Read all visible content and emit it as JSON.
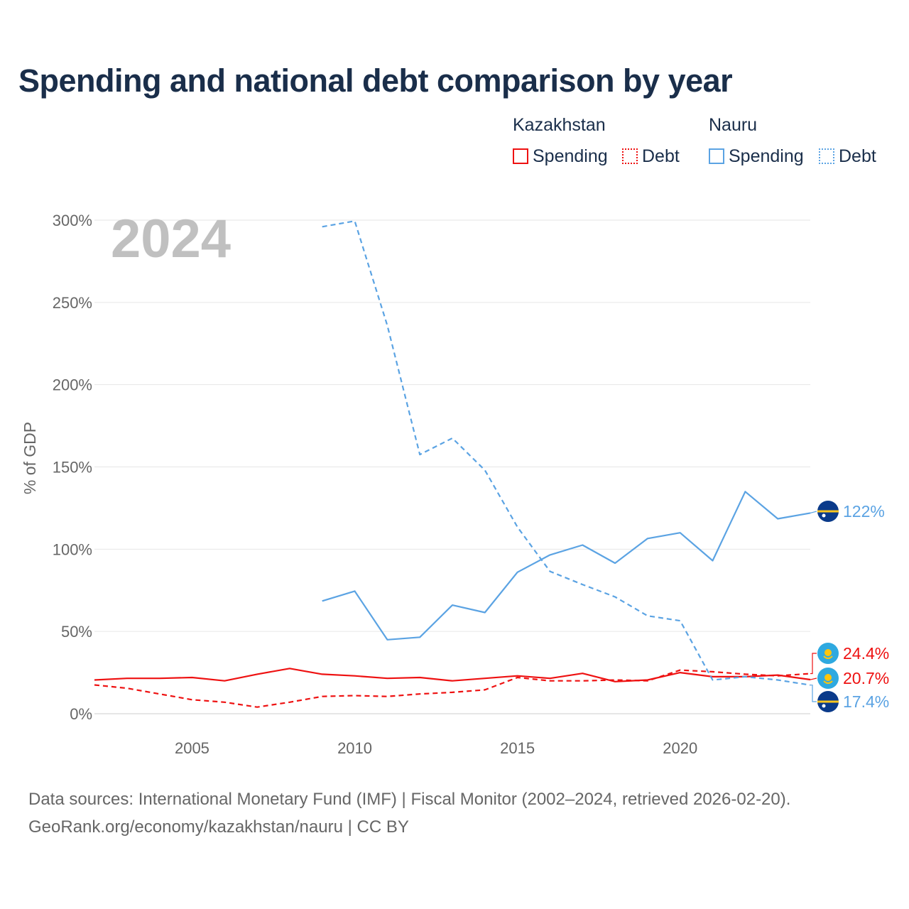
{
  "title": "Spending and national debt comparison by year",
  "legend": {
    "groups": [
      {
        "country": "Kazakhstan",
        "color": "#ee1111",
        "items": [
          {
            "label": "Spending",
            "style": "solid"
          },
          {
            "label": "Debt",
            "style": "dotted"
          }
        ]
      },
      {
        "country": "Nauru",
        "color": "#5ba3e3",
        "items": [
          {
            "label": "Spending",
            "style": "solid"
          },
          {
            "label": "Debt",
            "style": "dotted"
          }
        ]
      }
    ]
  },
  "source": {
    "line1": "Data sources: International Monetary Fund (IMF) | Fiscal Monitor (2002–2024, retrieved 2026-02-20).",
    "line2": "GeoRank.org/economy/kazakhstan/nauru | CC BY"
  },
  "chart_data": {
    "type": "line",
    "title": "Spending and national debt comparison by year",
    "watermark_year": "2024",
    "xlabel": "",
    "ylabel": "% of GDP",
    "xlim": [
      2002,
      2024
    ],
    "ylim": [
      0,
      300
    ],
    "x_ticks": [
      2005,
      2010,
      2015,
      2020
    ],
    "y_ticks": [
      0,
      50,
      100,
      150,
      200,
      250,
      300
    ],
    "y_tick_labels": [
      "0%",
      "50%",
      "100%",
      "150%",
      "200%",
      "250%",
      "300%"
    ],
    "grid": true,
    "colors": {
      "kazakhstan": "#ee1111",
      "nauru": "#5ba3e3"
    },
    "series": [
      {
        "name": "Kazakhstan Spending",
        "country": "kazakhstan",
        "style": "solid",
        "x": [
          2002,
          2003,
          2004,
          2005,
          2006,
          2007,
          2008,
          2009,
          2010,
          2011,
          2012,
          2013,
          2014,
          2015,
          2016,
          2017,
          2018,
          2019,
          2020,
          2021,
          2022,
          2023,
          2024
        ],
        "values": [
          20.5,
          21.5,
          21.5,
          22,
          20,
          24,
          27.5,
          24,
          23,
          21.5,
          22,
          20,
          21.5,
          23,
          21.5,
          24.5,
          19.5,
          20.5,
          25,
          22.5,
          22.5,
          23.5,
          20.7
        ]
      },
      {
        "name": "Kazakhstan Debt",
        "country": "kazakhstan",
        "style": "dashed",
        "x": [
          2002,
          2003,
          2004,
          2005,
          2006,
          2007,
          2008,
          2009,
          2010,
          2011,
          2012,
          2013,
          2014,
          2015,
          2016,
          2017,
          2018,
          2019,
          2020,
          2021,
          2022,
          2023,
          2024
        ],
        "values": [
          17.5,
          15.5,
          12,
          8.5,
          7,
          4,
          7,
          10.5,
          11,
          10.5,
          12,
          13,
          14.5,
          22,
          20,
          20,
          20.5,
          20,
          26.5,
          25.5,
          24,
          23,
          24.4
        ]
      },
      {
        "name": "Nauru Spending",
        "country": "nauru",
        "style": "solid",
        "x": [
          2009,
          2010,
          2011,
          2012,
          2013,
          2014,
          2015,
          2016,
          2017,
          2018,
          2019,
          2020,
          2021,
          2022,
          2023,
          2024
        ],
        "values": [
          68.5,
          74.5,
          45,
          46.5,
          66,
          61.5,
          86,
          96.5,
          102.5,
          91.5,
          106.5,
          110,
          93,
          135,
          118.5,
          122
        ]
      },
      {
        "name": "Nauru Debt",
        "country": "nauru",
        "style": "dashed",
        "x": [
          2009,
          2010,
          2011,
          2012,
          2013,
          2014,
          2015,
          2016,
          2017,
          2018,
          2019,
          2020,
          2021,
          2022,
          2023,
          2024
        ],
        "values": [
          296,
          299.5,
          236,
          157.5,
          167.5,
          148,
          113.5,
          86.5,
          78.5,
          71,
          59.5,
          56.5,
          20.5,
          22.5,
          20.5,
          17.4
        ]
      }
    ],
    "end_labels": [
      {
        "series": "Nauru Spending",
        "label": "122%",
        "country": "nauru",
        "value": 122
      },
      {
        "series": "Kazakhstan Debt",
        "label": "24.4%",
        "country": "kazakhstan",
        "value": 24.4
      },
      {
        "series": "Kazakhstan Spending",
        "label": "20.7%",
        "country": "kazakhstan",
        "value": 20.7
      },
      {
        "series": "Nauru Debt",
        "label": "17.4%",
        "country": "nauru",
        "value": 17.4
      }
    ]
  }
}
